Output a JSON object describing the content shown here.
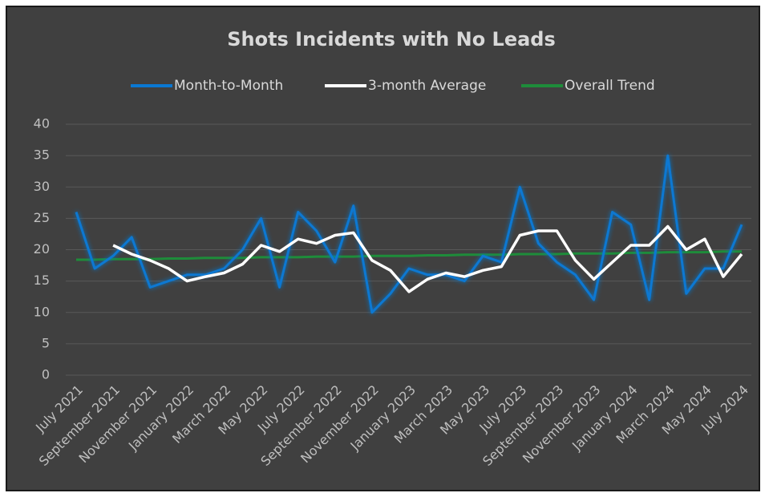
{
  "chart_data": {
    "type": "line",
    "title": "Shots Incidents with No Leads",
    "categories": [
      "July 2021",
      null,
      "September 2021",
      null,
      "November 2021",
      null,
      "January 2022",
      null,
      "March 2022",
      null,
      "May 2022",
      null,
      "July 2022",
      null,
      "September 2022",
      null,
      "November 2022",
      null,
      "January 2023",
      null,
      "March 2023",
      null,
      "May 2023",
      null,
      "July 2023",
      null,
      "September 2023",
      null,
      "November 2023",
      null,
      "January 2024",
      null,
      "March 2024",
      null,
      "May 2024",
      null,
      "July 2024"
    ],
    "series": [
      {
        "name": "Month-to-Month",
        "color": "#0a78d2",
        "values": [
          26,
          17,
          19,
          22,
          14,
          15,
          16,
          16,
          17,
          20,
          25,
          14,
          26,
          23,
          18,
          27,
          10,
          13,
          17,
          16,
          16,
          15,
          19,
          18,
          30,
          21,
          18,
          16,
          12,
          26,
          24,
          12,
          35,
          13,
          17,
          17,
          24
        ]
      },
      {
        "name": "3-month Average",
        "color": "#ffffff",
        "values": [
          null,
          null,
          20.7,
          19.3,
          18.3,
          17,
          15,
          15.7,
          16.3,
          17.7,
          20.7,
          19.7,
          21.7,
          21,
          22.3,
          22.7,
          18.3,
          16.7,
          13.3,
          15.3,
          16.3,
          15.7,
          16.7,
          17.3,
          22.3,
          23,
          23,
          18.3,
          15.3,
          18,
          20.7,
          20.7,
          23.7,
          20,
          21.7,
          15.7,
          19.3
        ]
      },
      {
        "name": "Overall Trend",
        "color": "#1e8c3a",
        "values": [
          18.4,
          18.4,
          18.5,
          18.5,
          18.5,
          18.6,
          18.6,
          18.7,
          18.7,
          18.7,
          18.8,
          18.8,
          18.8,
          18.9,
          18.9,
          18.9,
          19.0,
          19.0,
          19.0,
          19.1,
          19.1,
          19.2,
          19.2,
          19.2,
          19.3,
          19.3,
          19.3,
          19.4,
          19.4,
          19.4,
          19.5,
          19.5,
          19.6,
          19.6,
          19.6,
          19.7,
          19.7
        ]
      }
    ],
    "ylim": [
      0,
      40
    ],
    "yticks": [
      0,
      5,
      10,
      15,
      20,
      25,
      30,
      35,
      40
    ],
    "grid": true,
    "legend": "top"
  }
}
